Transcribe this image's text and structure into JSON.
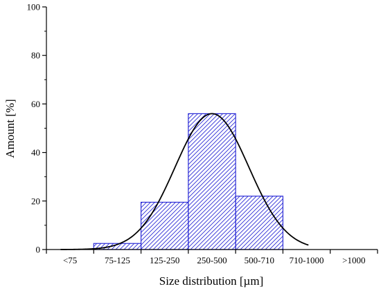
{
  "chart_data": {
    "type": "bar",
    "xlabel": "Size distribution [µm]",
    "ylabel": "Amount [%]",
    "categories": [
      "<75",
      "75-125",
      "125-250",
      "250-500",
      "500-710",
      "710-1000",
      ">1000"
    ],
    "values": [
      0,
      2.5,
      19.5,
      56,
      22,
      0,
      0
    ],
    "ylim": [
      0,
      100
    ],
    "yticks": [
      "0",
      "20",
      "40",
      "60",
      "80",
      "100"
    ],
    "grid": false,
    "bar_color": "#2b2bd6",
    "fit_curve": {
      "type": "gaussian",
      "peak": 56,
      "center_category_index": 3.5,
      "sigma_categories": 0.78,
      "color": "#000000"
    }
  }
}
